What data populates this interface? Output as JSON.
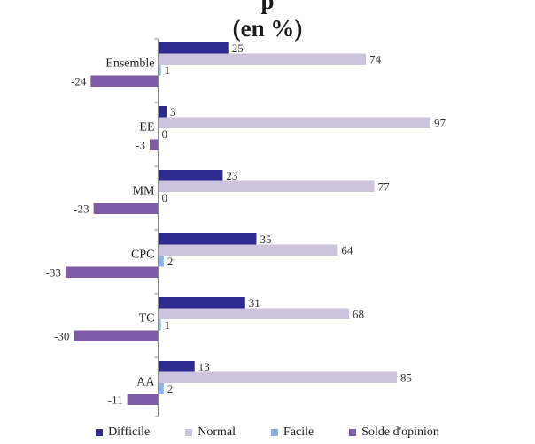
{
  "chart_data": {
    "type": "bar",
    "orientation": "horizontal",
    "title": [
      "p",
      "(en %)"
    ],
    "categories": [
      "Ensemble",
      "EE",
      "MM",
      "CPC",
      "TC",
      "AA"
    ],
    "series": [
      {
        "name": "Difficile",
        "color": "#2e2a8f",
        "values": [
          25,
          3,
          23,
          35,
          31,
          13
        ]
      },
      {
        "name": "Normal",
        "color": "#ccc3de",
        "values": [
          74,
          97,
          77,
          64,
          68,
          85
        ]
      },
      {
        "name": "Facile",
        "color": "#8db4e2",
        "values": [
          1,
          0,
          0,
          2,
          1,
          2
        ]
      },
      {
        "name": "Solde d'opinion",
        "color": "#7e5ba6",
        "values": [
          -24,
          -3,
          -23,
          -33,
          -30,
          -11
        ]
      }
    ],
    "legend_position": "bottom",
    "grid": false
  }
}
